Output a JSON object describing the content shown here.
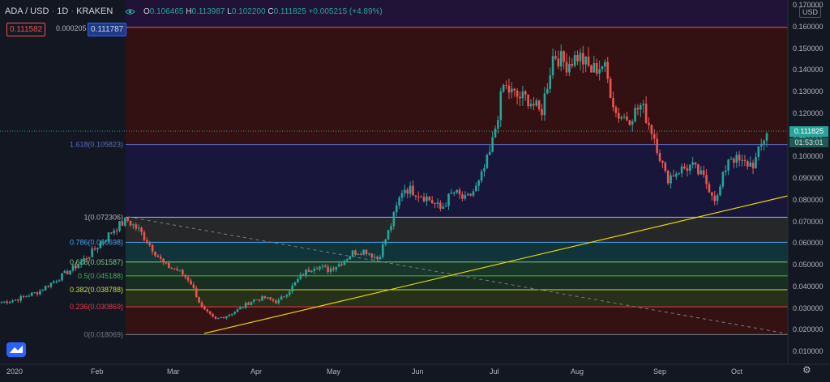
{
  "header": {
    "symbol": "ADA / USD",
    "interval": "1D",
    "exchange": "KRAKEN",
    "open_label": "O",
    "open": "0.106465",
    "high_label": "H",
    "high": "0.113987",
    "low_label": "L",
    "low": "0.102200",
    "close_label": "C",
    "close": "0.111825",
    "change": "+0.005215 (+4.89%)"
  },
  "trade": {
    "sell_price": "0.111582",
    "spread": "0.000205",
    "buy_price": "0.111787"
  },
  "price_axis": {
    "currency": "USD",
    "current_price": "0.111825",
    "countdown": "01:53:01",
    "ticks": [
      "0.170000",
      "0.160000",
      "0.150000",
      "0.140000",
      "0.130000",
      "0.120000",
      "0.110000",
      "0.100000",
      "0.090000",
      "0.080000",
      "0.070000",
      "0.060000",
      "0.050000",
      "0.040000",
      "0.030000",
      "0.020000",
      "0.010000"
    ]
  },
  "time_axis": {
    "labels": [
      "2020",
      "Feb",
      "Mar",
      "Apr",
      "May",
      "Jun",
      "Jul",
      "Aug",
      "Sep",
      "Oct"
    ]
  },
  "fibonacci": {
    "levels": [
      {
        "label": "0(0.018069)",
        "price": 0.018069,
        "color": "#787b86"
      },
      {
        "label": "0.236(0.030869)",
        "price": 0.030869,
        "color": "#f23645"
      },
      {
        "label": "0.382(0.038788)",
        "price": 0.038788,
        "color": "#cddc39"
      },
      {
        "label": "0.5(0.045188)",
        "price": 0.045188,
        "color": "#4caf50"
      },
      {
        "label": "0.618(0.051587)",
        "price": 0.051587,
        "color": "#81c784"
      },
      {
        "label": "0.786(0.060698)",
        "price": 0.060698,
        "color": "#42a5f5"
      },
      {
        "label": "1(0.072306)",
        "price": 0.072306,
        "color": "#b2b5be"
      },
      {
        "label": "1.618(0.105823)",
        "price": 0.105823,
        "color": "#5c6bc0"
      }
    ],
    "top_price": 0.16
  },
  "colors": {
    "up": "#26a69a",
    "down": "#ef5350",
    "trendline": "#e6d600",
    "background": "#131722"
  },
  "icons": {
    "visibility": "eye-icon",
    "logo": "tradingview-logo-icon",
    "settings": "gear-icon"
  },
  "chart_data": {
    "type": "candlestick",
    "title": "ADA / USD · 1D · KRAKEN",
    "ylim": [
      0.01,
      0.17
    ],
    "months": [
      "2020",
      "Feb",
      "Mar",
      "Apr",
      "May",
      "Jun",
      "Jul",
      "Aug",
      "Sep",
      "Oct"
    ],
    "closes": [
      0.033,
      0.034,
      0.036,
      0.038,
      0.042,
      0.046,
      0.05,
      0.055,
      0.061,
      0.067,
      0.071,
      0.066,
      0.058,
      0.05,
      0.048,
      0.043,
      0.03,
      0.025,
      0.027,
      0.03,
      0.034,
      0.035,
      0.033,
      0.039,
      0.046,
      0.05,
      0.048,
      0.051,
      0.056,
      0.057,
      0.053,
      0.068,
      0.086,
      0.084,
      0.081,
      0.076,
      0.084,
      0.08,
      0.087,
      0.103,
      0.133,
      0.128,
      0.127,
      0.12,
      0.148,
      0.143,
      0.147,
      0.14,
      0.143,
      0.12,
      0.118,
      0.124,
      0.11,
      0.09,
      0.094,
      0.096,
      0.09,
      0.08,
      0.101,
      0.097,
      0.097,
      0.112
    ]
  }
}
